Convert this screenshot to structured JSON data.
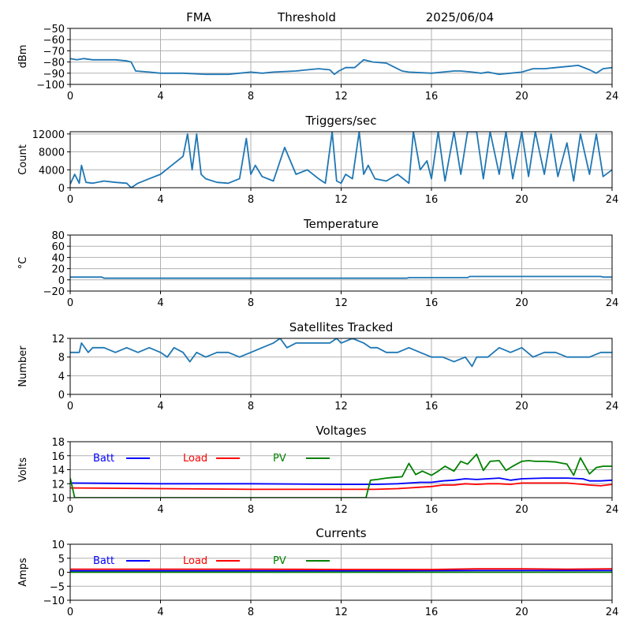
{
  "header": {
    "station": "FMA",
    "label": "Threshold",
    "date": "2025/06/04"
  },
  "chart_data": [
    {
      "type": "line",
      "title": "",
      "xlabel": "",
      "ylabel": "dBm",
      "xlim": [
        0,
        24
      ],
      "ylim": [
        -100,
        -50
      ],
      "xticks": [
        0,
        4,
        8,
        12,
        16,
        20,
        24
      ],
      "yticks": [
        -100,
        -90,
        -80,
        -70,
        -60,
        -50
      ],
      "grid": true,
      "series": [
        {
          "color": "#1f77b4",
          "x": [
            0,
            0.3,
            0.6,
            1,
            1.5,
            2,
            2.5,
            2.7,
            2.9,
            3.5,
            4,
            5,
            6,
            7,
            7.5,
            8,
            8.5,
            9,
            10,
            10.5,
            11,
            11.5,
            11.7,
            11.9,
            12.2,
            12.6,
            13,
            13.4,
            14,
            14.3,
            14.7,
            15,
            16,
            16.5,
            17,
            17.3,
            17.8,
            18.2,
            18.5,
            19,
            19.5,
            20,
            20.5,
            21,
            21.5,
            22,
            22.5,
            23,
            23.3,
            23.6,
            24
          ],
          "values": [
            -77,
            -78,
            -77,
            -78,
            -78,
            -78,
            -79,
            -80,
            -88,
            -89,
            -90,
            -90,
            -91,
            -91,
            -90,
            -89,
            -90,
            -89,
            -88,
            -87,
            -86,
            -87,
            -91,
            -88,
            -85,
            -85,
            -78,
            -80,
            -81,
            -84,
            -88,
            -89,
            -90,
            -89,
            -88,
            -88,
            -89,
            -90,
            -89,
            -91,
            -90,
            -89,
            -86,
            -86,
            -85,
            -84,
            -83,
            -87,
            -90,
            -86,
            -85
          ]
        }
      ]
    },
    {
      "type": "line",
      "title": "Triggers/sec",
      "xlabel": "",
      "ylabel": "Count",
      "xlim": [
        0,
        24
      ],
      "ylim": [
        0,
        12500
      ],
      "xticks": [
        0,
        4,
        8,
        12,
        16,
        20,
        24
      ],
      "yticks": [
        0,
        4000,
        8000,
        12000
      ],
      "grid": true,
      "series": [
        {
          "color": "#1f77b4",
          "x": [
            0,
            0.2,
            0.4,
            0.5,
            0.7,
            1,
            1.5,
            2,
            2.5,
            2.7,
            3,
            3.5,
            4,
            4.5,
            5,
            5.2,
            5.4,
            5.6,
            5.8,
            6,
            6.5,
            7,
            7.5,
            7.8,
            8,
            8.2,
            8.5,
            9,
            9.5,
            10,
            10.5,
            11,
            11.3,
            11.6,
            11.8,
            12,
            12.2,
            12.5,
            12.8,
            13,
            13.2,
            13.5,
            14,
            14.5,
            15,
            15.2,
            15.5,
            15.8,
            16,
            16.3,
            16.6,
            17,
            17.3,
            17.6,
            18,
            18.3,
            18.6,
            19,
            19.3,
            19.6,
            20,
            20.3,
            20.6,
            21,
            21.3,
            21.6,
            22,
            22.3,
            22.6,
            23,
            23.3,
            23.6,
            24
          ],
          "values": [
            800,
            3000,
            1000,
            5000,
            1200,
            1000,
            1500,
            1200,
            1000,
            0,
            1000,
            2000,
            3000,
            5000,
            7000,
            12000,
            4000,
            12000,
            3000,
            2000,
            1200,
            1000,
            2000,
            11000,
            3000,
            5000,
            2500,
            1500,
            9000,
            3000,
            4000,
            2000,
            1000,
            12500,
            1500,
            1000,
            3000,
            2000,
            12500,
            3000,
            5000,
            2000,
            1500,
            3000,
            1000,
            12500,
            4000,
            6000,
            2000,
            12500,
            1500,
            12500,
            3000,
            12500,
            12500,
            2000,
            12500,
            3000,
            12500,
            2000,
            12500,
            2500,
            12500,
            3000,
            12000,
            2500,
            10000,
            1500,
            12000,
            3000,
            12000,
            2500,
            4000
          ]
        }
      ]
    },
    {
      "type": "line",
      "title": "Temperature",
      "xlabel": "",
      "ylabel": "°C",
      "xlim": [
        0,
        24
      ],
      "ylim": [
        -20,
        80
      ],
      "xticks": [
        0,
        4,
        8,
        12,
        16,
        20,
        24
      ],
      "yticks": [
        -20,
        0,
        20,
        40,
        60,
        80
      ],
      "grid": true,
      "series": [
        {
          "color": "#1f77b4",
          "x": [
            0,
            1.4,
            1.5,
            14.9,
            15,
            17.6,
            17.7,
            23.5,
            23.6,
            24
          ],
          "values": [
            5,
            5,
            3,
            3,
            4,
            4,
            6,
            6,
            5,
            5
          ]
        }
      ]
    },
    {
      "type": "line",
      "title": "Satellites Tracked",
      "xlabel": "",
      "ylabel": "Number",
      "xlim": [
        0,
        24
      ],
      "ylim": [
        0,
        12
      ],
      "xticks": [
        0,
        4,
        8,
        12,
        16,
        20,
        24
      ],
      "yticks": [
        0,
        4,
        8,
        12
      ],
      "grid": true,
      "series": [
        {
          "color": "#1f77b4",
          "x": [
            0,
            0.4,
            0.5,
            0.8,
            1,
            1.5,
            2,
            2.5,
            3,
            3.5,
            4,
            4.3,
            4.6,
            5,
            5.3,
            5.6,
            6,
            6.5,
            7,
            7.5,
            8,
            8.5,
            9,
            9.3,
            9.6,
            10,
            10.5,
            11,
            11.5,
            11.8,
            12,
            12.5,
            13,
            13.3,
            13.6,
            14,
            14.5,
            15,
            15.5,
            16,
            16.5,
            17,
            17.5,
            17.8,
            18,
            18.5,
            19,
            19.5,
            20,
            20.5,
            21,
            21.5,
            22,
            22.5,
            23,
            23.5,
            24
          ],
          "values": [
            9,
            9,
            11,
            9,
            10,
            10,
            9,
            10,
            9,
            10,
            9,
            8,
            10,
            9,
            7,
            9,
            8,
            9,
            9,
            8,
            9,
            10,
            11,
            12,
            10,
            11,
            11,
            11,
            11,
            12,
            11,
            12,
            11,
            10,
            10,
            9,
            9,
            10,
            9,
            8,
            8,
            7,
            8,
            6,
            8,
            8,
            10,
            9,
            10,
            8,
            9,
            9,
            8,
            8,
            8,
            9,
            9
          ]
        }
      ]
    },
    {
      "type": "line",
      "title": "Voltages",
      "xlabel": "",
      "ylabel": "Volts",
      "xlim": [
        0,
        24
      ],
      "ylim": [
        10,
        18
      ],
      "xticks": [
        0,
        4,
        8,
        12,
        16,
        20,
        24
      ],
      "yticks": [
        10,
        12,
        14,
        16,
        18
      ],
      "grid": true,
      "legend": [
        "Batt",
        "Load",
        "PV"
      ],
      "series": [
        {
          "name": "Batt",
          "color": "#0000ff",
          "x": [
            0,
            4,
            8,
            12,
            13.5,
            14.5,
            15,
            15.5,
            16,
            16.5,
            17,
            17.5,
            18,
            18.5,
            19,
            19.5,
            20,
            21,
            22,
            22.7,
            23,
            23.5,
            24
          ],
          "values": [
            12.1,
            12.0,
            12.0,
            11.9,
            11.9,
            12.0,
            12.1,
            12.2,
            12.2,
            12.4,
            12.5,
            12.7,
            12.6,
            12.7,
            12.8,
            12.5,
            12.7,
            12.8,
            12.8,
            12.7,
            12.4,
            12.4,
            12.5
          ]
        },
        {
          "name": "Load",
          "color": "#ff0000",
          "x": [
            0,
            4,
            8,
            12,
            13.5,
            14.5,
            15,
            15.5,
            16,
            16.5,
            17,
            17.5,
            18,
            18.5,
            19,
            19.5,
            20,
            21,
            22,
            22.7,
            23,
            23.5,
            24
          ],
          "values": [
            11.4,
            11.3,
            11.2,
            11.2,
            11.2,
            11.3,
            11.4,
            11.5,
            11.6,
            11.8,
            11.8,
            12.0,
            11.9,
            12.0,
            12.0,
            11.9,
            12.1,
            12.1,
            12.1,
            11.9,
            11.8,
            11.7,
            11.9
          ]
        },
        {
          "name": "PV",
          "color": "#008000",
          "x": [
            0,
            0.2,
            13.1,
            13.3,
            13.6,
            14,
            14.3,
            14.7,
            15,
            15.3,
            15.6,
            16,
            16.3,
            16.6,
            17,
            17.3,
            17.6,
            18,
            18.3,
            18.6,
            19,
            19.3,
            19.6,
            20,
            20.3,
            20.6,
            21,
            21.5,
            22,
            22.3,
            22.6,
            23,
            23.3,
            23.6,
            24
          ],
          "values": [
            12.8,
            10,
            10,
            12.5,
            12.6,
            12.8,
            12.9,
            13.0,
            14.9,
            13.3,
            13.8,
            13.2,
            13.8,
            14.5,
            13.8,
            15.2,
            14.8,
            16.2,
            13.9,
            15.2,
            15.3,
            13.9,
            14.5,
            15.2,
            15.3,
            15.2,
            15.2,
            15.1,
            14.8,
            13.2,
            15.7,
            13.4,
            14.3,
            14.5,
            14.5
          ]
        }
      ]
    },
    {
      "type": "line",
      "title": "Currents",
      "xlabel": "",
      "ylabel": "Amps",
      "xlim": [
        0,
        24
      ],
      "ylim": [
        -10,
        10
      ],
      "xticks": [
        0,
        4,
        8,
        12,
        16,
        20,
        24
      ],
      "yticks": [
        -10,
        -5,
        0,
        5,
        10
      ],
      "grid": true,
      "legend": [
        "Batt",
        "Load",
        "PV"
      ],
      "series": [
        {
          "name": "Batt",
          "color": "#0000ff",
          "x": [
            0,
            12,
            18,
            20,
            24
          ],
          "values": [
            0.5,
            0.5,
            0.6,
            0.6,
            0.6
          ]
        },
        {
          "name": "Load",
          "color": "#ff0000",
          "x": [
            0,
            8,
            12,
            16,
            18,
            20,
            22,
            24
          ],
          "values": [
            1.1,
            1.1,
            1.0,
            1.0,
            1.2,
            1.2,
            1.1,
            1.2
          ]
        },
        {
          "name": "PV",
          "color": "#008000",
          "x": [
            0,
            24
          ],
          "values": [
            0.0,
            0.0
          ]
        }
      ]
    }
  ]
}
